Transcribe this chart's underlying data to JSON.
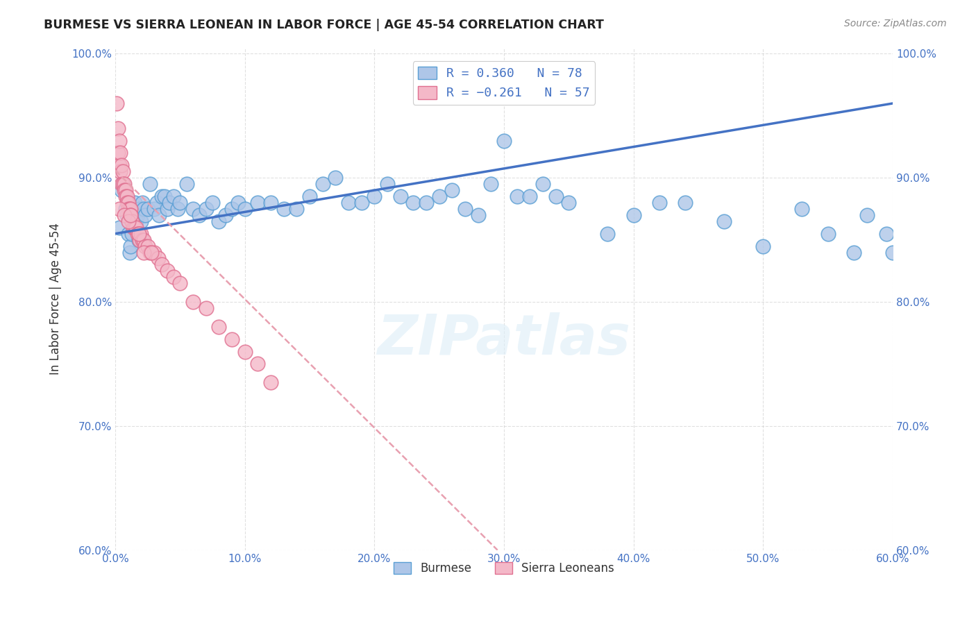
{
  "title": "BURMESE VS SIERRA LEONEAN IN LABOR FORCE | AGE 45-54 CORRELATION CHART",
  "source": "Source: ZipAtlas.com",
  "ylabel": "In Labor Force | Age 45-54",
  "xlim": [
    0.0,
    0.6
  ],
  "ylim": [
    0.6,
    1.005
  ],
  "xticks": [
    0.0,
    0.1,
    0.2,
    0.3,
    0.4,
    0.5,
    0.6
  ],
  "xticklabels": [
    "0.0%",
    "10.0%",
    "20.0%",
    "30.0%",
    "40.0%",
    "50.0%",
    "60.0%"
  ],
  "yticks": [
    0.6,
    0.7,
    0.8,
    0.9,
    1.0
  ],
  "yticklabels": [
    "60.0%",
    "70.0%",
    "80.0%",
    "90.0%",
    "100.0%"
  ],
  "burmese_color": "#aec6e8",
  "burmese_edge": "#5a9fd4",
  "sierra_color": "#f4b8c8",
  "sierra_edge": "#e07090",
  "trend_blue": "#4472c4",
  "trend_pink": "#e8a0b0",
  "legend_R_blue": "R = 0.360",
  "legend_N_blue": "N = 78",
  "legend_R_pink": "R = -0.261",
  "legend_N_pink": "N = 57",
  "watermark": "ZIPatlas",
  "burmese_x": [
    0.003,
    0.005,
    0.006,
    0.008,
    0.009,
    0.01,
    0.011,
    0.012,
    0.013,
    0.014,
    0.015,
    0.016,
    0.017,
    0.018,
    0.019,
    0.02,
    0.021,
    0.022,
    0.023,
    0.025,
    0.027,
    0.03,
    0.032,
    0.034,
    0.036,
    0.038,
    0.04,
    0.042,
    0.045,
    0.048,
    0.05,
    0.055,
    0.06,
    0.065,
    0.07,
    0.075,
    0.08,
    0.085,
    0.09,
    0.095,
    0.1,
    0.11,
    0.12,
    0.13,
    0.14,
    0.15,
    0.16,
    0.17,
    0.18,
    0.19,
    0.2,
    0.21,
    0.22,
    0.23,
    0.24,
    0.25,
    0.26,
    0.27,
    0.28,
    0.29,
    0.3,
    0.31,
    0.32,
    0.33,
    0.34,
    0.35,
    0.38,
    0.4,
    0.42,
    0.44,
    0.47,
    0.5,
    0.53,
    0.55,
    0.57,
    0.58,
    0.595,
    0.6
  ],
  "burmese_y": [
    0.86,
    0.89,
    0.895,
    0.875,
    0.87,
    0.855,
    0.84,
    0.845,
    0.855,
    0.87,
    0.88,
    0.865,
    0.87,
    0.85,
    0.875,
    0.865,
    0.88,
    0.875,
    0.87,
    0.875,
    0.895,
    0.875,
    0.88,
    0.87,
    0.885,
    0.885,
    0.875,
    0.88,
    0.885,
    0.875,
    0.88,
    0.895,
    0.875,
    0.87,
    0.875,
    0.88,
    0.865,
    0.87,
    0.875,
    0.88,
    0.875,
    0.88,
    0.88,
    0.875,
    0.875,
    0.885,
    0.895,
    0.9,
    0.88,
    0.88,
    0.885,
    0.895,
    0.885,
    0.88,
    0.88,
    0.885,
    0.89,
    0.875,
    0.87,
    0.895,
    0.93,
    0.885,
    0.885,
    0.895,
    0.885,
    0.88,
    0.855,
    0.87,
    0.88,
    0.88,
    0.865,
    0.845,
    0.875,
    0.855,
    0.84,
    0.87,
    0.855,
    0.84
  ],
  "sierra_x": [
    0.001,
    0.002,
    0.002,
    0.003,
    0.003,
    0.004,
    0.004,
    0.005,
    0.005,
    0.006,
    0.006,
    0.007,
    0.007,
    0.008,
    0.008,
    0.009,
    0.009,
    0.01,
    0.01,
    0.011,
    0.011,
    0.012,
    0.012,
    0.013,
    0.013,
    0.014,
    0.015,
    0.016,
    0.017,
    0.018,
    0.019,
    0.02,
    0.021,
    0.022,
    0.023,
    0.025,
    0.027,
    0.03,
    0.033,
    0.036,
    0.04,
    0.045,
    0.05,
    0.06,
    0.07,
    0.08,
    0.09,
    0.1,
    0.11,
    0.12,
    0.003,
    0.007,
    0.01,
    0.012,
    0.018,
    0.022,
    0.028
  ],
  "sierra_y": [
    0.96,
    0.94,
    0.92,
    0.93,
    0.91,
    0.92,
    0.905,
    0.91,
    0.895,
    0.905,
    0.895,
    0.895,
    0.89,
    0.89,
    0.885,
    0.885,
    0.88,
    0.88,
    0.875,
    0.875,
    0.87,
    0.875,
    0.87,
    0.865,
    0.865,
    0.86,
    0.86,
    0.86,
    0.855,
    0.855,
    0.85,
    0.855,
    0.85,
    0.85,
    0.845,
    0.845,
    0.84,
    0.84,
    0.835,
    0.83,
    0.825,
    0.82,
    0.815,
    0.8,
    0.795,
    0.78,
    0.77,
    0.76,
    0.75,
    0.735,
    0.875,
    0.87,
    0.865,
    0.87,
    0.855,
    0.84,
    0.84
  ],
  "blue_trendline_x0": 0.0,
  "blue_trendline_x1": 0.6,
  "blue_trendline_y0": 0.855,
  "blue_trendline_y1": 0.96,
  "pink_trendline_x0": 0.0,
  "pink_trendline_x1": 0.295,
  "pink_trendline_y0": 0.906,
  "pink_trendline_y1": 0.6
}
